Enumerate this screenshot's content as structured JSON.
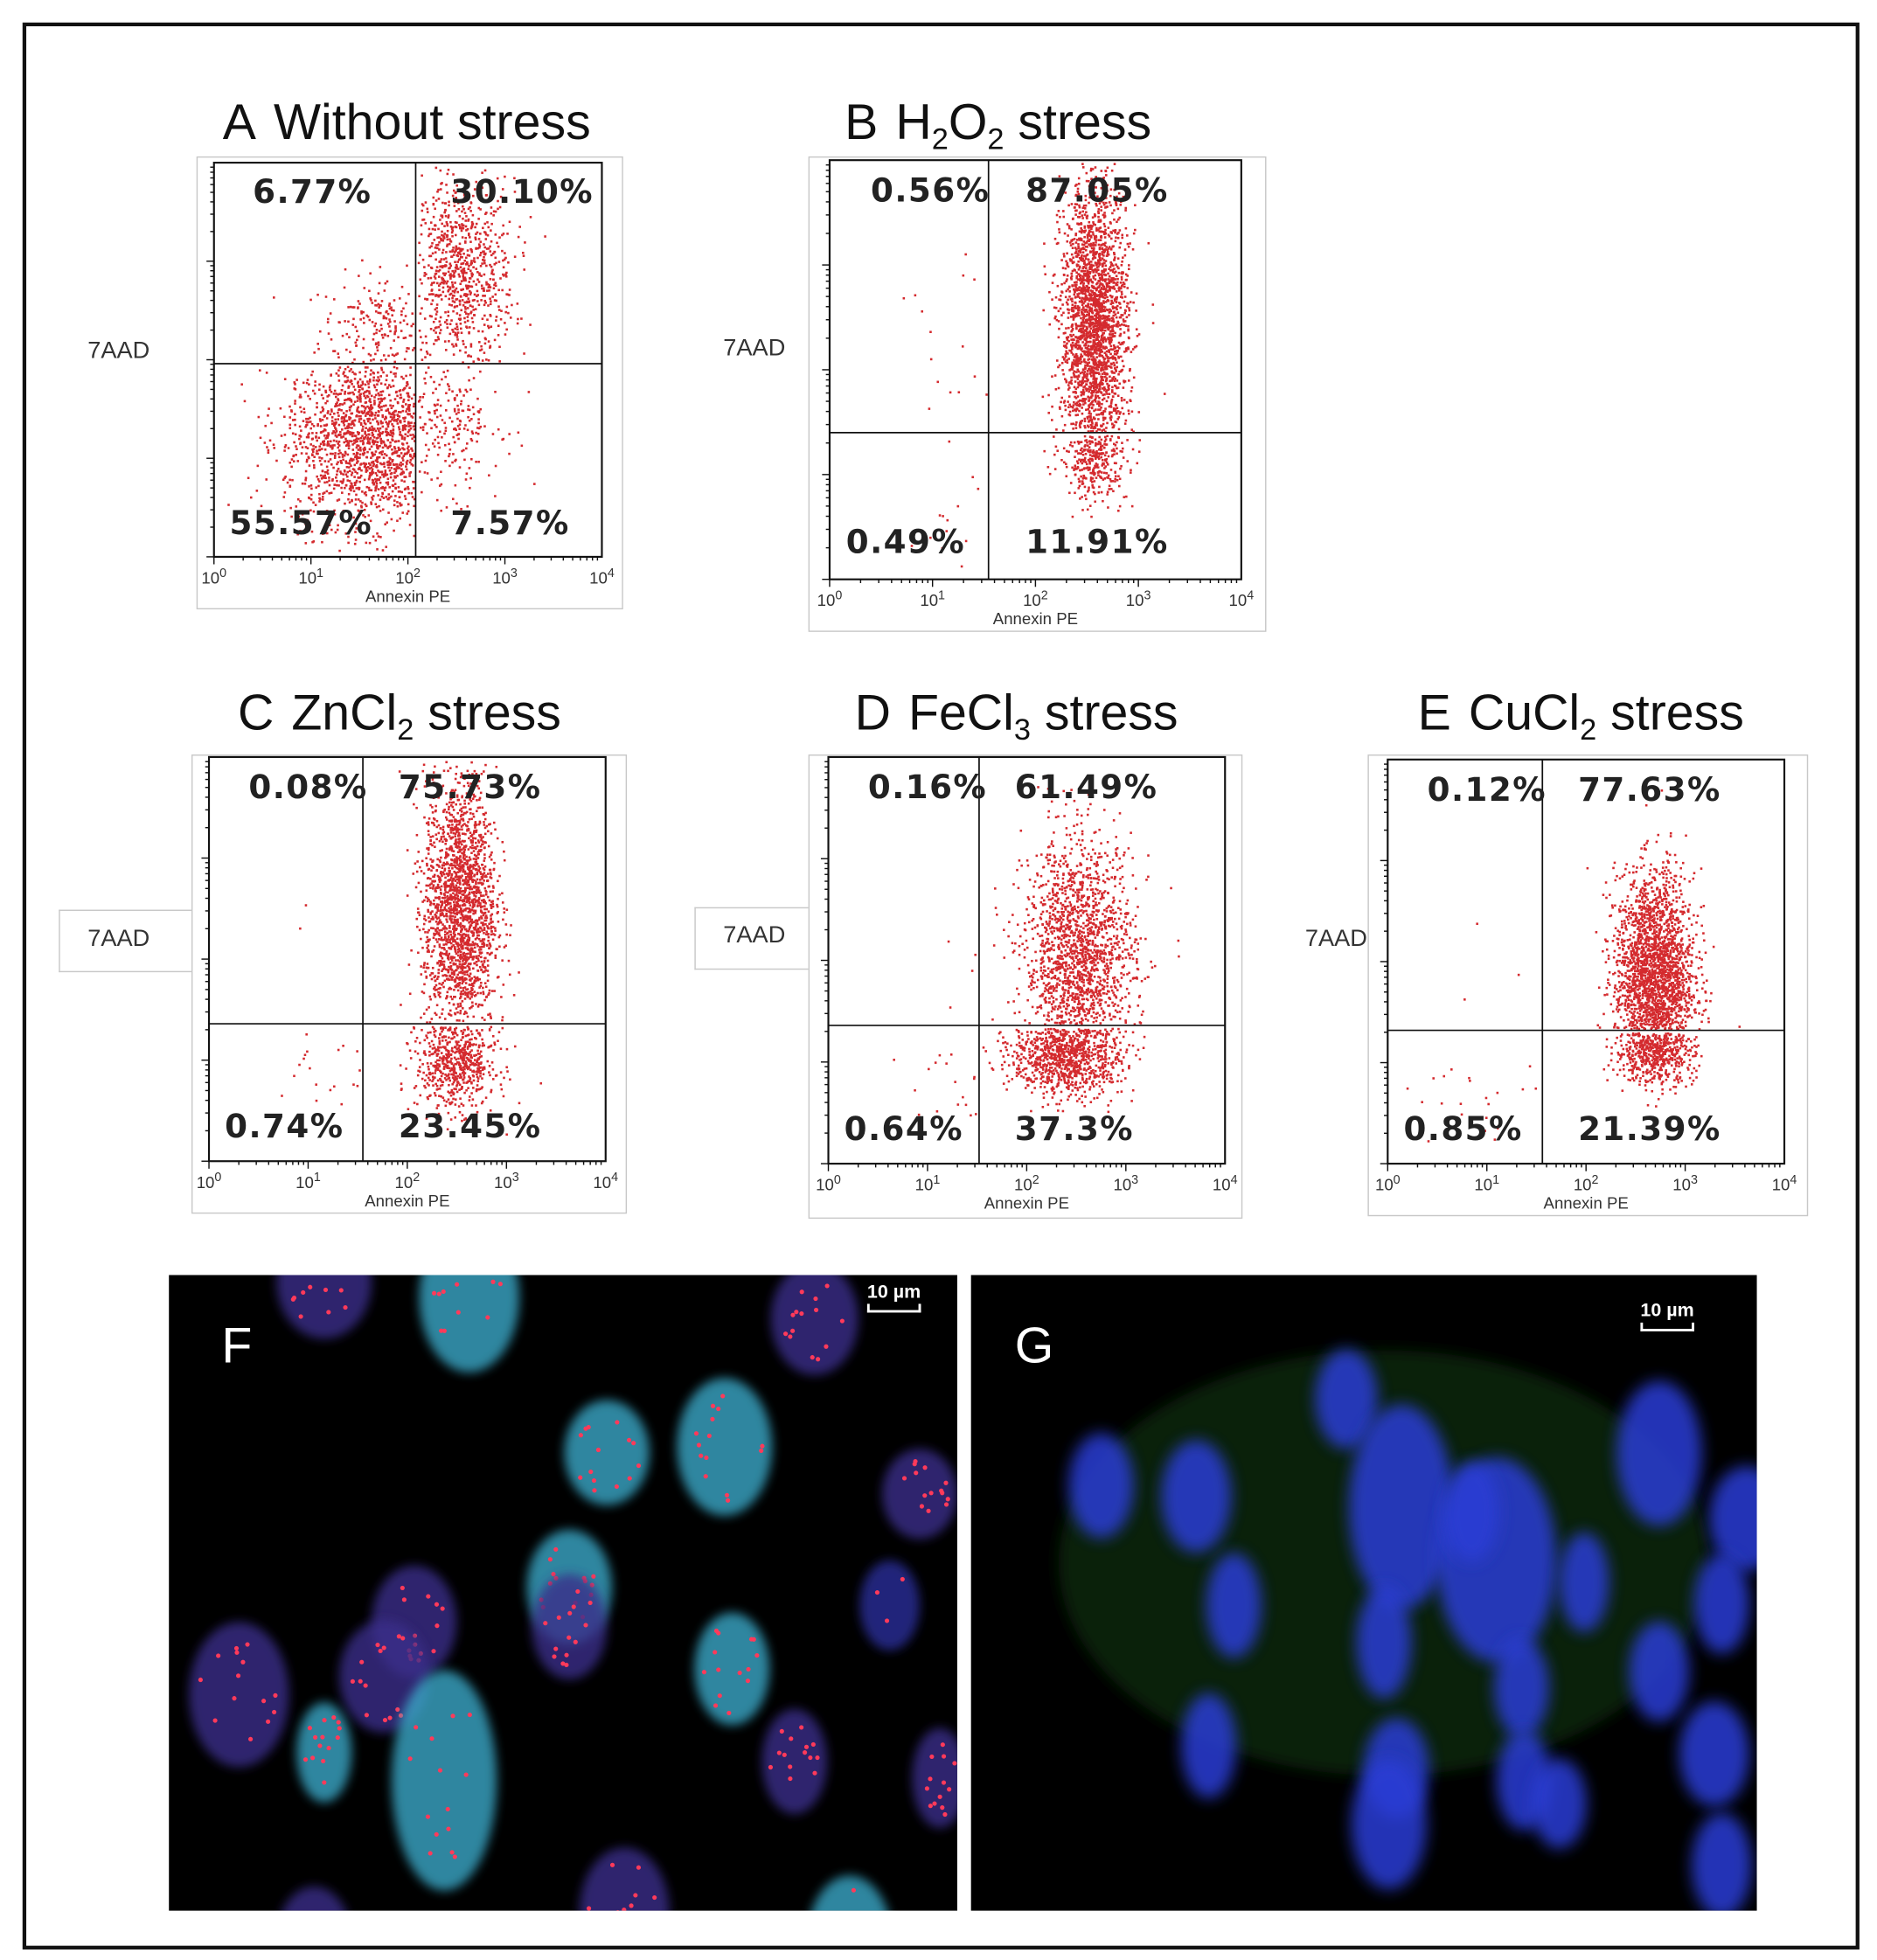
{
  "panels": [
    {
      "letter": "A",
      "title_parts": [
        "Without stress"
      ],
      "ylabel": "7AAD",
      "xlabel": "Annexin PE",
      "quadrants": {
        "UL": "6.77%",
        "UR": "30.10%",
        "LL": "55.57%",
        "LR": "7.57%"
      }
    },
    {
      "letter": "B",
      "title_parts": [
        "H",
        "2",
        "O",
        "2",
        " stress"
      ],
      "ylabel": "7AAD",
      "xlabel": "Annexin PE",
      "quadrants": {
        "UL": "0.56%",
        "UR": "87.05%",
        "LL": "0.49%",
        "LR": "11.91%"
      }
    },
    {
      "letter": "C",
      "title_parts": [
        "ZnCl",
        "2",
        " stress"
      ],
      "ylabel": "7AAD",
      "xlabel": "Annexin PE",
      "quadrants": {
        "UL": "0.08%",
        "UR": "75.73%",
        "LL": "0.74%",
        "LR": "23.45%"
      }
    },
    {
      "letter": "D",
      "title_parts": [
        "FeCl",
        "3",
        " stress"
      ],
      "ylabel": "7AAD",
      "xlabel": "Annexin PE",
      "quadrants": {
        "UL": "0.16%",
        "UR": "61.49%",
        "LL": "0.64%",
        "LR": "37.3%"
      }
    },
    {
      "letter": "E",
      "title_parts": [
        "CuCl",
        "2",
        " stress"
      ],
      "ylabel": "7AAD",
      "xlabel": "Annexin PE",
      "quadrants": {
        "UL": "0.12%",
        "UR": "77.63%",
        "LL": "0.85%",
        "LR": "21.39%"
      }
    }
  ],
  "x_tick_base": "10",
  "x_tick_exponents": [
    "0",
    "1",
    "2",
    "3",
    "4"
  ],
  "micrographs": [
    {
      "letter": "F",
      "scale_label": "10 µm"
    },
    {
      "letter": "G",
      "scale_label": "10 µm"
    }
  ],
  "colors": {
    "dots": "#d42a2e",
    "axes": "#111111"
  },
  "chart_data": [
    {
      "type": "scatter",
      "title": "A Without stress",
      "xlabel": "Annexin PE",
      "ylabel": "7AAD",
      "x_scale": "log",
      "xlim": [
        1,
        10000
      ],
      "x_ticks": [
        "10^0",
        "10^1",
        "10^2",
        "10^3",
        "10^4"
      ],
      "quadrant_percent": {
        "upper_left": 6.77,
        "upper_right": 30.1,
        "lower_left": 55.57,
        "lower_right": 7.57
      }
    },
    {
      "type": "scatter",
      "title": "B H2O2 stress",
      "xlabel": "Annexin PE",
      "ylabel": "7AAD",
      "x_scale": "log",
      "xlim": [
        1,
        10000
      ],
      "x_ticks": [
        "10^0",
        "10^1",
        "10^2",
        "10^3",
        "10^4"
      ],
      "quadrant_percent": {
        "upper_left": 0.56,
        "upper_right": 87.05,
        "lower_left": 0.49,
        "lower_right": 11.91
      }
    },
    {
      "type": "scatter",
      "title": "C ZnCl2 stress",
      "xlabel": "Annexin PE",
      "ylabel": "7AAD",
      "x_scale": "log",
      "xlim": [
        1,
        10000
      ],
      "x_ticks": [
        "10^0",
        "10^1",
        "10^2",
        "10^3",
        "10^4"
      ],
      "quadrant_percent": {
        "upper_left": 0.08,
        "upper_right": 75.73,
        "lower_left": 0.74,
        "lower_right": 23.45
      }
    },
    {
      "type": "scatter",
      "title": "D FeCl3 stress",
      "xlabel": "Annexin PE",
      "ylabel": "7AAD",
      "x_scale": "log",
      "xlim": [
        1,
        10000
      ],
      "x_ticks": [
        "10^0",
        "10^1",
        "10^2",
        "10^3",
        "10^4"
      ],
      "quadrant_percent": {
        "upper_left": 0.16,
        "upper_right": 61.49,
        "lower_left": 0.64,
        "lower_right": 37.3
      }
    },
    {
      "type": "scatter",
      "title": "E CuCl2 stress",
      "xlabel": "Annexin PE",
      "ylabel": "7AAD",
      "x_scale": "log",
      "xlim": [
        1,
        10000
      ],
      "x_ticks": [
        "10^0",
        "10^1",
        "10^2",
        "10^3",
        "10^4"
      ],
      "quadrant_percent": {
        "upper_left": 0.12,
        "upper_right": 77.63,
        "lower_left": 0.85,
        "lower_right": 21.39
      }
    }
  ]
}
